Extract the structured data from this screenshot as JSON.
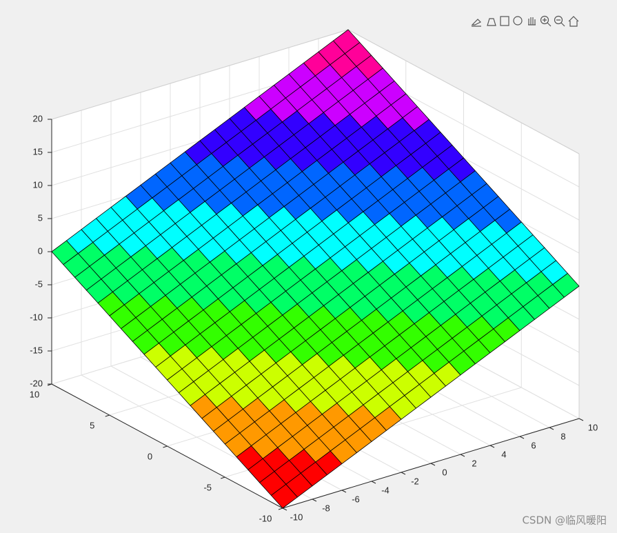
{
  "chart_data": {
    "type": "surface",
    "x": [
      -10,
      -9,
      -8,
      -7,
      -6,
      -5,
      -4,
      -3,
      -2,
      -1,
      0,
      1,
      2,
      3,
      4,
      5,
      6,
      7,
      8,
      9,
      10
    ],
    "y": [
      -10,
      -9,
      -8,
      -7,
      -6,
      -5,
      -4,
      -3,
      -2,
      -1,
      0,
      1,
      2,
      3,
      4,
      5,
      6,
      7,
      8,
      9,
      10
    ],
    "z": [
      [
        -20,
        -19,
        -18,
        -17,
        -16,
        -15,
        -14,
        -13,
        -12,
        -11,
        -10,
        -9,
        -8,
        -7,
        -6,
        -5,
        -4,
        -3,
        -2,
        -1,
        0
      ],
      [
        -19,
        -18,
        -17,
        -16,
        -15,
        -14,
        -13,
        -12,
        -11,
        -10,
        -9,
        -8,
        -7,
        -6,
        -5,
        -4,
        -3,
        -2,
        -1,
        0,
        1
      ],
      [
        -18,
        -17,
        -16,
        -15,
        -14,
        -13,
        -12,
        -11,
        -10,
        -9,
        -8,
        -7,
        -6,
        -5,
        -4,
        -3,
        -2,
        -1,
        0,
        1,
        2
      ],
      [
        -17,
        -16,
        -15,
        -14,
        -13,
        -12,
        -11,
        -10,
        -9,
        -8,
        -7,
        -6,
        -5,
        -4,
        -3,
        -2,
        -1,
        0,
        1,
        2,
        3
      ],
      [
        -16,
        -15,
        -14,
        -13,
        -12,
        -11,
        -10,
        -9,
        -8,
        -7,
        -6,
        -5,
        -4,
        -3,
        -2,
        -1,
        0,
        1,
        2,
        3,
        4
      ],
      [
        -15,
        -14,
        -13,
        -12,
        -11,
        -10,
        -9,
        -8,
        -7,
        -6,
        -5,
        -4,
        -3,
        -2,
        -1,
        0,
        1,
        2,
        3,
        4,
        5
      ],
      [
        -14,
        -13,
        -12,
        -11,
        -10,
        -9,
        -8,
        -7,
        -6,
        -5,
        -4,
        -3,
        -2,
        -1,
        0,
        1,
        2,
        3,
        4,
        5,
        6
      ],
      [
        -13,
        -12,
        -11,
        -10,
        -9,
        -8,
        -7,
        -6,
        -5,
        -4,
        -3,
        -2,
        -1,
        0,
        1,
        2,
        3,
        4,
        5,
        6,
        7
      ],
      [
        -12,
        -11,
        -10,
        -9,
        -8,
        -7,
        -6,
        -5,
        -4,
        -3,
        -2,
        -1,
        0,
        1,
        2,
        3,
        4,
        5,
        6,
        7,
        8
      ],
      [
        -11,
        -10,
        -9,
        -8,
        -7,
        -6,
        -5,
        -4,
        -3,
        -2,
        -1,
        0,
        1,
        2,
        3,
        4,
        5,
        6,
        7,
        8,
        9
      ],
      [
        -10,
        -9,
        -8,
        -7,
        -6,
        -5,
        -4,
        -3,
        -2,
        -1,
        0,
        1,
        2,
        3,
        4,
        5,
        6,
        7,
        8,
        9,
        10
      ],
      [
        -9,
        -8,
        -7,
        -6,
        -5,
        -4,
        -3,
        -2,
        -1,
        0,
        1,
        2,
        3,
        4,
        5,
        6,
        7,
        8,
        9,
        10,
        11
      ],
      [
        -8,
        -7,
        -6,
        -5,
        -4,
        -3,
        -2,
        -1,
        0,
        1,
        2,
        3,
        4,
        5,
        6,
        7,
        8,
        9,
        10,
        11,
        12
      ],
      [
        -7,
        -6,
        -5,
        -4,
        -3,
        -2,
        -1,
        0,
        1,
        2,
        3,
        4,
        5,
        6,
        7,
        8,
        9,
        10,
        11,
        12,
        13
      ],
      [
        -6,
        -5,
        -4,
        -3,
        -2,
        -1,
        0,
        1,
        2,
        3,
        4,
        5,
        6,
        7,
        8,
        9,
        10,
        11,
        12,
        13,
        14
      ],
      [
        -5,
        -4,
        -3,
        -2,
        -1,
        0,
        1,
        2,
        3,
        4,
        5,
        6,
        7,
        8,
        9,
        10,
        11,
        12,
        13,
        14,
        15
      ],
      [
        -4,
        -3,
        -2,
        -1,
        0,
        1,
        2,
        3,
        4,
        5,
        6,
        7,
        8,
        9,
        10,
        11,
        12,
        13,
        14,
        15,
        16
      ],
      [
        -3,
        -2,
        -1,
        0,
        1,
        2,
        3,
        4,
        5,
        6,
        7,
        8,
        9,
        10,
        11,
        12,
        13,
        14,
        15,
        16,
        17
      ],
      [
        -2,
        -1,
        0,
        1,
        2,
        3,
        4,
        5,
        6,
        7,
        8,
        9,
        10,
        11,
        12,
        13,
        14,
        15,
        16,
        17,
        18
      ],
      [
        -1,
        0,
        1,
        2,
        3,
        4,
        5,
        6,
        7,
        8,
        9,
        10,
        11,
        12,
        13,
        14,
        15,
        16,
        17,
        18,
        19
      ],
      [
        0,
        1,
        2,
        3,
        4,
        5,
        6,
        7,
        8,
        9,
        10,
        11,
        12,
        13,
        14,
        15,
        16,
        17,
        18,
        19,
        20
      ]
    ],
    "xlim": [
      -10,
      10
    ],
    "ylim": [
      -10,
      10
    ],
    "zlim": [
      -20,
      20
    ],
    "xticks": [
      -10,
      -8,
      -6,
      -4,
      -2,
      0,
      2,
      4,
      6,
      8,
      10
    ],
    "yticks": [
      -10,
      -5,
      0,
      5,
      10
    ],
    "zticks": [
      -20,
      -15,
      -10,
      -5,
      0,
      5,
      10,
      15,
      20
    ],
    "clim": [
      -20,
      20
    ],
    "colormap": [
      "#ff0000",
      "#ff9900",
      "#ccff00",
      "#33ff00",
      "#00ff66",
      "#00ffff",
      "#0066ff",
      "#3300ff",
      "#cc00ff",
      "#ff0099"
    ],
    "grid": true
  },
  "watermark": "CSDN @临风暖阳"
}
